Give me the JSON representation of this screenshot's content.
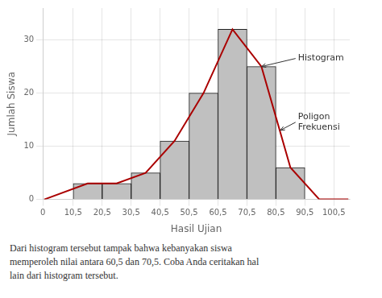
{
  "chart_data": {
    "type": "histogram",
    "xlabel": "Hasil Ujian",
    "ylabel": "Jumlah Siswa",
    "bins": [
      10.5,
      20.5,
      30.5,
      40.5,
      50.5,
      60.5,
      70.5,
      80.5,
      90.5,
      100.5
    ],
    "series": [
      {
        "type": "bar",
        "values": [
          3,
          3,
          5,
          11,
          20,
          32,
          25,
          6,
          0
        ],
        "color": "#c0c0c0"
      },
      {
        "type": "line",
        "x": [
          0.5,
          15.5,
          25.5,
          35.5,
          45.5,
          55.5,
          65.5,
          75.5,
          85.5,
          95.5,
          105.5
        ],
        "values": [
          0,
          3,
          3,
          5,
          11,
          20,
          32,
          25,
          6,
          0,
          0
        ],
        "color": "#aa0000"
      }
    ],
    "xlim": [
      0,
      106
    ],
    "xticks": [
      0,
      {
        "value": 10.5,
        "label": "10,5"
      },
      {
        "value": 20.5,
        "label": "20,5"
      },
      {
        "value": 30.5,
        "label": "30,5"
      },
      {
        "value": 40.5,
        "label": "40,5"
      },
      {
        "value": 50.5,
        "label": "50,5"
      },
      {
        "value": 60.5,
        "label": "60,5"
      },
      {
        "value": 70.5,
        "label": "70,5"
      },
      {
        "value": 80.5,
        "label": "80,5"
      },
      {
        "value": 90.5,
        "label": "90,5"
      },
      {
        "value": 100.5,
        "label": "100,5"
      }
    ],
    "ylim": [
      0,
      36
    ],
    "yticks": [
      0,
      10,
      20,
      30
    ],
    "grid": true,
    "annotations": [
      {
        "text": "Histogram",
        "x": 75.5,
        "y": 25
      },
      {
        "text": "Poligon\nFrekuensi",
        "x": 82,
        "y": 13
      }
    ],
    "caption": "Dari histogram tersebut tampak bahwa kebanyakan siswa\nmemperoleh nilai antara 60,5 dan 70,5. Coba Anda ceritakan hal\nlain dari histogram tersebut."
  }
}
